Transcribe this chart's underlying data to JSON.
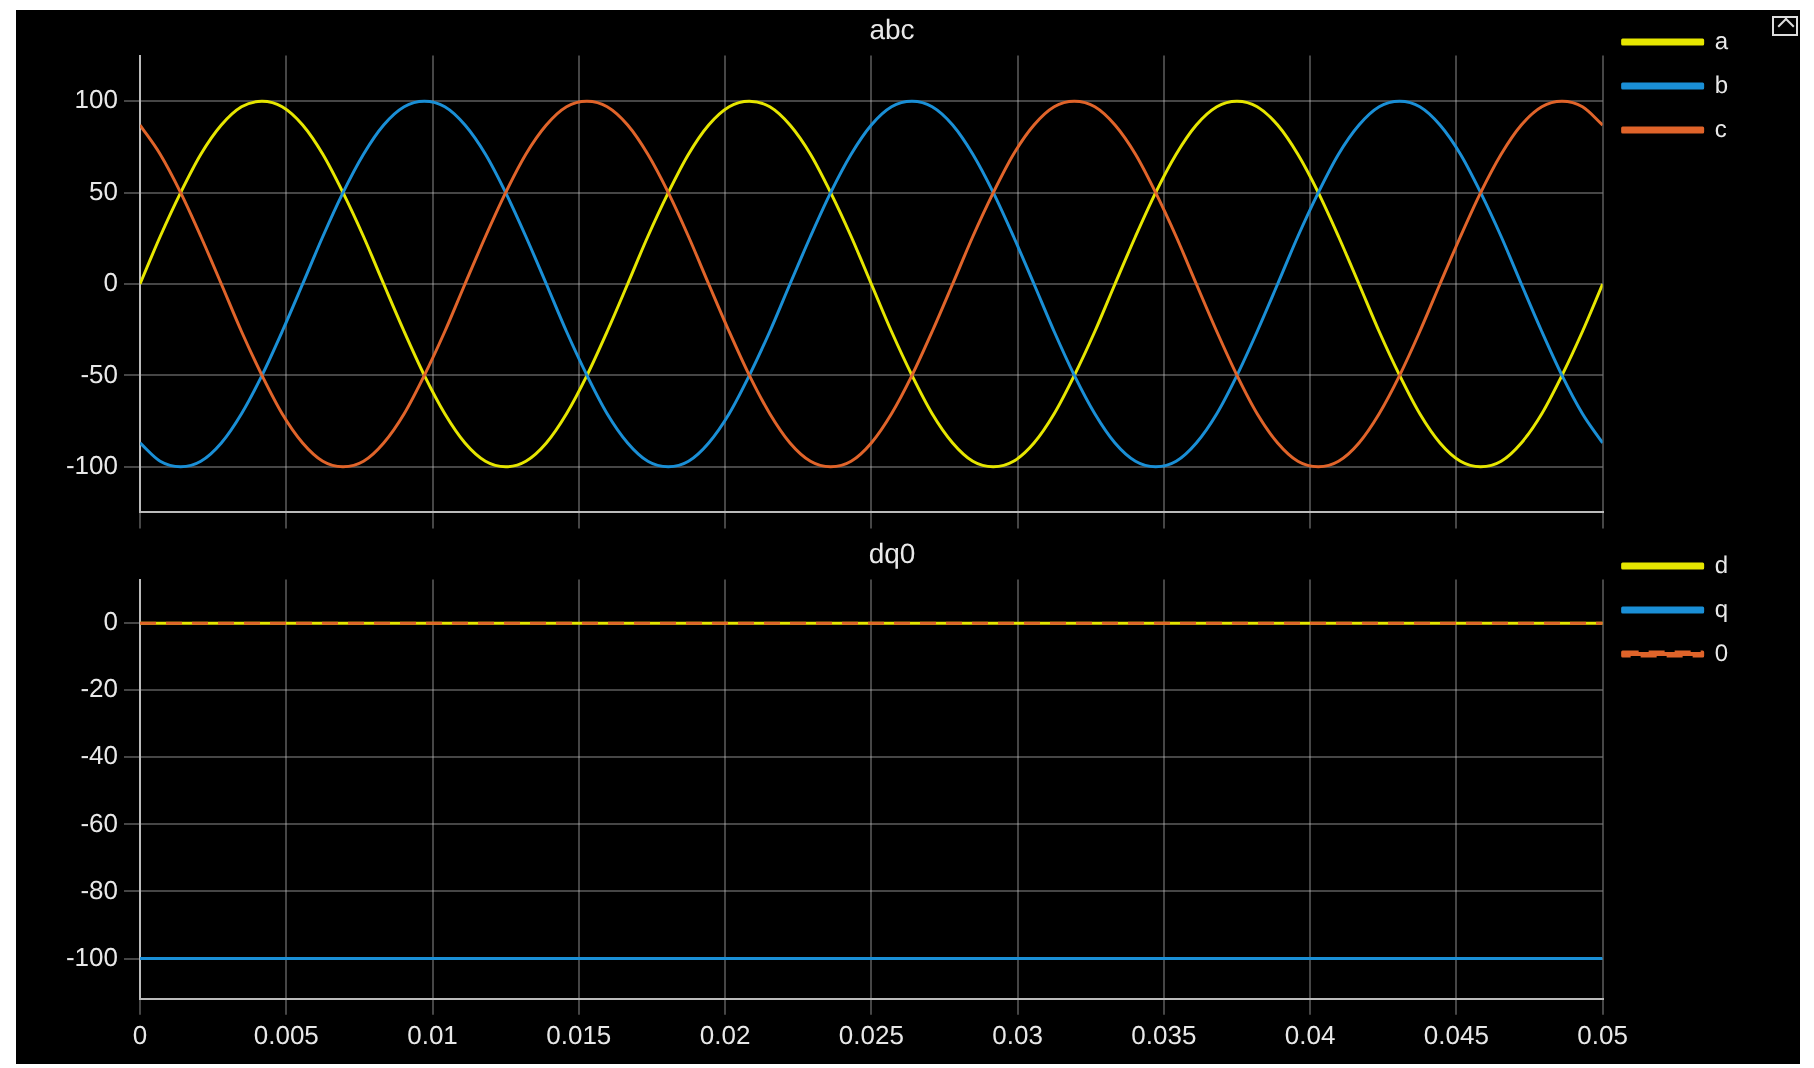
{
  "chart_data": [
    {
      "type": "line",
      "title": "abc",
      "x": [
        0,
        0.00069,
        0.00139,
        0.00208,
        0.00278,
        0.00347,
        0.00417,
        0.00486,
        0.00556,
        0.00625,
        0.00694,
        0.00764,
        0.00833,
        0.00903,
        0.00972,
        0.01042,
        0.01111,
        0.01181,
        0.0125,
        0.01319,
        0.01389,
        0.01458,
        0.01528,
        0.01597,
        0.01667,
        0.01736,
        0.01806,
        0.01875,
        0.01944,
        0.02014,
        0.02083,
        0.02153,
        0.02222,
        0.02292,
        0.02361,
        0.02431,
        0.025,
        0.02569,
        0.02639,
        0.02708,
        0.02778,
        0.02847,
        0.02917,
        0.02986,
        0.03056,
        0.03125,
        0.03194,
        0.03264,
        0.03333,
        0.03403,
        0.03472,
        0.03542,
        0.03611,
        0.03681,
        0.0375,
        0.03819,
        0.03889,
        0.03958,
        0.04028,
        0.04097,
        0.04167,
        0.04236,
        0.04306,
        0.04375,
        0.04444,
        0.04514,
        0.04583,
        0.04653,
        0.04722,
        0.04792,
        0.04861,
        0.04931,
        0.05
      ],
      "series": [
        {
          "name": "a",
          "color": "#e6e600",
          "values": [
            0,
            26,
            50,
            71,
            87,
            97,
            100,
            97,
            87,
            71,
            50,
            26,
            0,
            -26,
            -50,
            -71,
            -87,
            -97,
            -100,
            -97,
            -87,
            -71,
            -50,
            -26,
            0,
            26,
            50,
            71,
            87,
            97,
            100,
            97,
            87,
            71,
            50,
            26,
            0,
            -26,
            -50,
            -71,
            -87,
            -97,
            -100,
            -97,
            -87,
            -71,
            -50,
            -26,
            0,
            26,
            50,
            71,
            87,
            97,
            100,
            97,
            87,
            71,
            50,
            26,
            0,
            -26,
            -50,
            -71,
            -87,
            -97,
            -100,
            -97,
            -87,
            -71,
            -50,
            -26,
            0
          ]
        },
        {
          "name": "b",
          "color": "#1a8fd6",
          "values": [
            -87,
            -97,
            -100,
            -97,
            -87,
            -71,
            -50,
            -26,
            0,
            26,
            50,
            71,
            87,
            97,
            100,
            97,
            87,
            71,
            50,
            26,
            0,
            -26,
            -50,
            -71,
            -87,
            -97,
            -100,
            -97,
            -87,
            -71,
            -50,
            -26,
            0,
            26,
            50,
            71,
            87,
            97,
            100,
            97,
            87,
            71,
            50,
            26,
            0,
            -26,
            -50,
            -71,
            -87,
            -97,
            -100,
            -97,
            -87,
            -71,
            -50,
            -26,
            0,
            26,
            50,
            71,
            87,
            97,
            100,
            97,
            87,
            71,
            50,
            26,
            0,
            -26,
            -50,
            -71,
            -87
          ]
        },
        {
          "name": "c",
          "color": "#e0642a",
          "values": [
            87,
            71,
            50,
            26,
            0,
            -26,
            -50,
            -71,
            -87,
            -97,
            -100,
            -97,
            -87,
            -71,
            -50,
            -26,
            0,
            26,
            50,
            71,
            87,
            97,
            100,
            97,
            87,
            71,
            50,
            26,
            0,
            -26,
            -50,
            -71,
            -87,
            -97,
            -100,
            -97,
            -87,
            -71,
            -50,
            -26,
            0,
            26,
            50,
            71,
            87,
            97,
            100,
            97,
            87,
            71,
            50,
            26,
            0,
            -26,
            -50,
            -71,
            -87,
            -97,
            -100,
            -97,
            -87,
            -71,
            -50,
            -26,
            0,
            26,
            50,
            71,
            87,
            97,
            100,
            97,
            87
          ]
        }
      ],
      "xlim": [
        0,
        0.05
      ],
      "xticks": [
        0,
        0.005,
        0.01,
        0.015,
        0.02,
        0.025,
        0.03,
        0.035,
        0.04,
        0.045,
        0.05
      ],
      "ylim": [
        -125,
        125
      ],
      "yticks": [
        -100,
        -50,
        0,
        50,
        100
      ],
      "tick_labels": "y",
      "grid": true,
      "legend": "top right",
      "line_style": "solid"
    },
    {
      "type": "line",
      "title": "dq0",
      "x": [
        0,
        0.05
      ],
      "series": [
        {
          "name": "d",
          "color": "#e6e600",
          "values": [
            0,
            0
          ]
        },
        {
          "name": "q",
          "color": "#1a8fd6",
          "values": [
            -100,
            -100
          ]
        },
        {
          "name": "0",
          "color": "#e0642a",
          "values": [
            0,
            0
          ],
          "line_style": "dashed"
        }
      ],
      "xlim": [
        0,
        0.05
      ],
      "xticks": [
        0,
        0.005,
        0.01,
        0.015,
        0.02,
        0.025,
        0.03,
        0.035,
        0.04,
        0.045,
        0.05
      ],
      "ylim": [
        -112,
        13
      ],
      "yticks": [
        -100,
        -80,
        -60,
        -40,
        -20,
        0
      ],
      "grid": true,
      "legend": "top right",
      "line_style": "solid"
    }
  ]
}
